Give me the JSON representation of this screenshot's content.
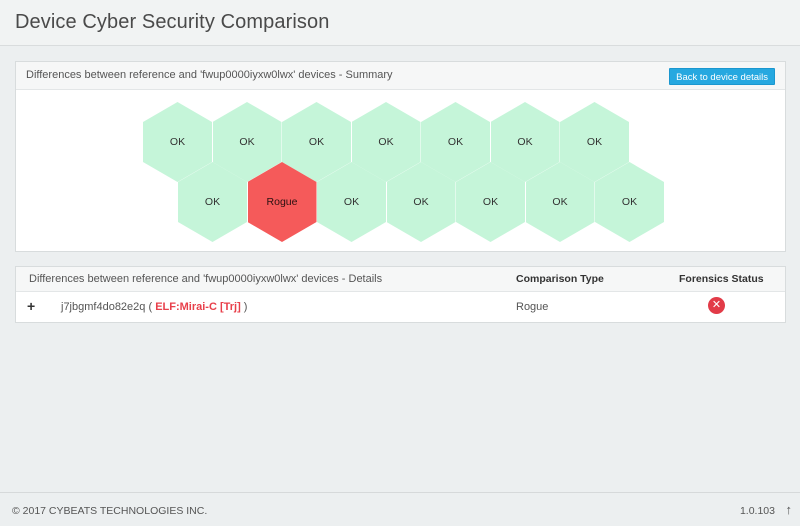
{
  "header": {
    "title": "Device Cyber Security Comparison"
  },
  "summary": {
    "heading": "Differences between reference and 'fwup0000iyxw0lwx' devices - Summary",
    "back_button_label": "Back to device details",
    "hex_rows": [
      [
        "OK",
        "OK",
        "OK",
        "OK",
        "OK",
        "OK",
        "OK"
      ],
      [
        "OK",
        "Rogue",
        "OK",
        "OK",
        "OK",
        "OK",
        "OK"
      ]
    ],
    "colors": {
      "ok": "#c5f5d9",
      "rogue": "#f55a5a"
    }
  },
  "details": {
    "heading": "Differences between reference and 'fwup0000iyxw0lwx' devices - Details",
    "columns": {
      "comparison_type": "Comparison Type",
      "forensics_status": "Forensics Status"
    },
    "rows": [
      {
        "expand_symbol": "+",
        "device_id": "j7jbgmf4do82e2q",
        "open_paren": " ( ",
        "malware": "ELF:Mirai-C [Trj]",
        "close_paren": " )",
        "comparison_type": "Rogue",
        "status_icon": "error-x-icon",
        "status_symbol": "✕"
      }
    ]
  },
  "footer": {
    "copyright": "© 2017 CYBEATS TECHNOLOGIES INC.",
    "version": "1.0.103",
    "scroll_symbol": "↑"
  }
}
